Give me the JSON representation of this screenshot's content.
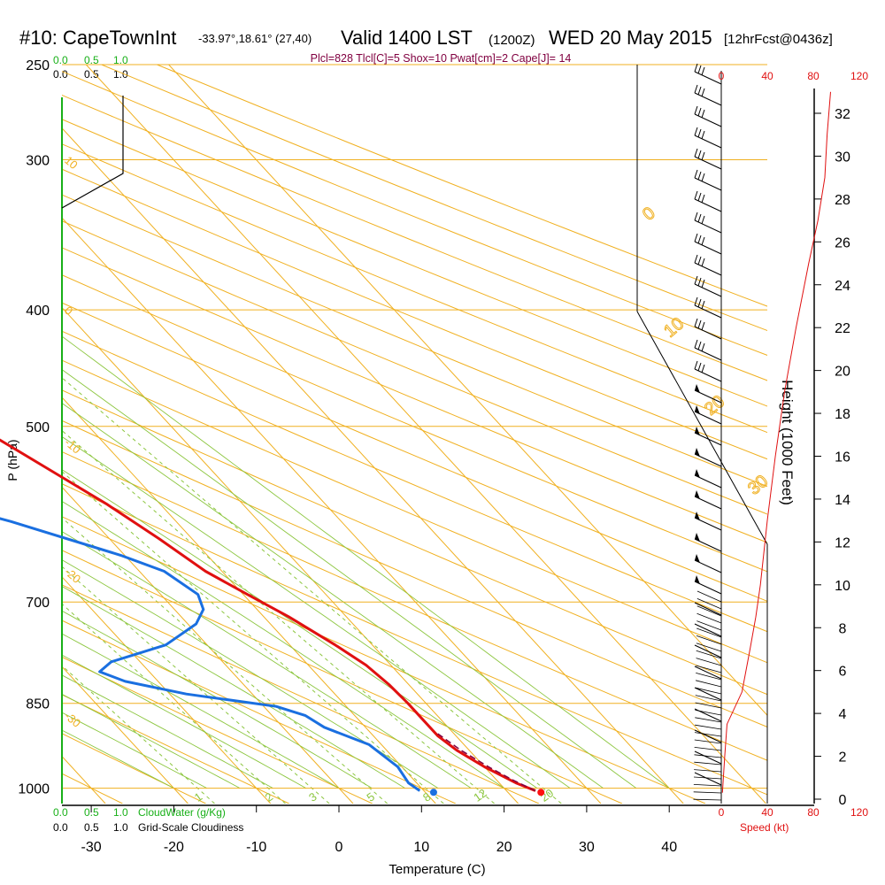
{
  "header": {
    "station": "#10: CapeTownInt",
    "coords": "-33.97°,18.61° (27,40)",
    "valid": "Valid 1400 LST",
    "zulu": "(1200Z)",
    "date": "WED 20 May 2015",
    "forecast": "[12hrFcst@0436z]",
    "indices": "Plcl=828 Tlcl[C]=5 Shox=10 Pwat[cm]=2 Cape[J]= 14"
  },
  "labels": {
    "cloudwater": "CloudWater (g/Kg)",
    "cloudiness": "Grid-Scale Cloudiness",
    "speed": "Speed (kt)",
    "cloud_ticks": [
      "0.0",
      "0.5",
      "1.0"
    ]
  },
  "colors": {
    "temperature": "#e01010",
    "dewpoint": "#1a6fe0",
    "isotherm": "#f0b020",
    "dry_adiabat": "#f0b020",
    "moist_adiabat": "#8cc63f",
    "mixing_ratio": "#8cc63f",
    "cloudwater": "#18b018",
    "parcel": "#800040",
    "speed": "#e01010"
  },
  "chart_data": {
    "type": "line",
    "subtype": "skew-T log-P sounding",
    "xlabel": "Temperature (C)",
    "ylabel": "P (hPa)",
    "right_axis_label": "Height (1000 Feet)",
    "xlim": [
      -35,
      45
    ],
    "ylim": [
      1030,
      250
    ],
    "x_ticks": [
      -30,
      -20,
      -10,
      0,
      10,
      20,
      30,
      40
    ],
    "y_ticks": [
      250,
      300,
      400,
      500,
      700,
      850,
      1000
    ],
    "height_ticks": [
      0,
      2,
      4,
      6,
      8,
      10,
      12,
      14,
      16,
      18,
      20,
      22,
      24,
      26,
      28,
      30,
      32
    ],
    "speed_ticks": [
      0,
      40,
      80,
      120
    ],
    "dry_adiabat_labels": [
      {
        "value": "10",
        "pressure": 300
      },
      {
        "value": "0",
        "pressure": 400
      },
      {
        "value": "-10",
        "pressure": 515
      },
      {
        "value": "-20",
        "pressure": 660
      },
      {
        "value": "-30",
        "pressure": 870
      }
    ],
    "isotherm_labels": [
      "0",
      "10",
      "20",
      "30"
    ],
    "mixing_ratio_labels": [
      "1",
      "2",
      "3",
      "5",
      "8",
      "12",
      "20"
    ],
    "series": [
      {
        "name": "Temperature",
        "points": [
          {
            "p": 1005,
            "t": 23.5
          },
          {
            "p": 990,
            "t": 22
          },
          {
            "p": 960,
            "t": 20
          },
          {
            "p": 930,
            "t": 18.5
          },
          {
            "p": 905,
            "t": 17.8
          },
          {
            "p": 880,
            "t": 17.8
          },
          {
            "p": 850,
            "t": 17.8
          },
          {
            "p": 820,
            "t": 17.6
          },
          {
            "p": 790,
            "t": 17
          },
          {
            "p": 760,
            "t": 15.5
          },
          {
            "p": 720,
            "t": 13
          },
          {
            "p": 690,
            "t": 10.5
          },
          {
            "p": 660,
            "t": 8
          },
          {
            "p": 620,
            "t": 6
          },
          {
            "p": 580,
            "t": 3.5
          },
          {
            "p": 550,
            "t": 1
          },
          {
            "p": 500,
            "t": -3.5
          },
          {
            "p": 450,
            "t": -9
          },
          {
            "p": 400,
            "t": -15
          },
          {
            "p": 350,
            "t": -22.5
          },
          {
            "p": 300,
            "t": -31
          },
          {
            "p": 270,
            "t": -37
          }
        ]
      },
      {
        "name": "Dewpoint",
        "points": [
          {
            "p": 1005,
            "t": 9.5
          },
          {
            "p": 990,
            "t": 9
          },
          {
            "p": 960,
            "t": 9.5
          },
          {
            "p": 920,
            "t": 8.5
          },
          {
            "p": 890,
            "t": 5
          },
          {
            "p": 870,
            "t": 4
          },
          {
            "p": 855,
            "t": 1.5
          },
          {
            "p": 835,
            "t": -8
          },
          {
            "p": 815,
            "t": -14
          },
          {
            "p": 800,
            "t": -16
          },
          {
            "p": 785,
            "t": -13.5
          },
          {
            "p": 760,
            "t": -5
          },
          {
            "p": 730,
            "t": 1
          },
          {
            "p": 710,
            "t": 3.5
          },
          {
            "p": 690,
            "t": 4.5
          },
          {
            "p": 660,
            "t": 3
          },
          {
            "p": 640,
            "t": -0.5
          },
          {
            "p": 600,
            "t": -10
          },
          {
            "p": 560,
            "t": -22
          },
          {
            "p": 530,
            "t": -24
          },
          {
            "p": 500,
            "t": -22
          },
          {
            "p": 470,
            "t": -17
          },
          {
            "p": 440,
            "t": -13
          },
          {
            "p": 420,
            "t": -15
          },
          {
            "p": 400,
            "t": -19.5
          },
          {
            "p": 370,
            "t": -22
          },
          {
            "p": 350,
            "t": -24
          },
          {
            "p": 330,
            "t": -21
          },
          {
            "p": 310,
            "t": -24
          },
          {
            "p": 280,
            "t": -30
          },
          {
            "p": 265,
            "t": -33
          }
        ]
      },
      {
        "name": "Parcel",
        "points": [
          {
            "p": 1005,
            "t": 23.5
          },
          {
            "p": 985,
            "t": 22
          },
          {
            "p": 960,
            "t": 20.5
          },
          {
            "p": 930,
            "t": 19
          },
          {
            "p": 900,
            "t": 18
          }
        ]
      }
    ],
    "surface_points": [
      {
        "name": "surface temperature",
        "p": 1008,
        "t": 24
      },
      {
        "name": "surface dewpoint",
        "p": 1008,
        "t": 11
      }
    ],
    "wind_speed_profile_kt": [
      {
        "height_kft": 0.3,
        "speed": 1
      },
      {
        "height_kft": 2,
        "speed": 3
      },
      {
        "height_kft": 3.5,
        "speed": 5
      },
      {
        "height_kft": 5,
        "speed": 18
      },
      {
        "height_kft": 7,
        "speed": 25
      },
      {
        "height_kft": 8.5,
        "speed": 30
      },
      {
        "height_kft": 10,
        "speed": 34
      },
      {
        "height_kft": 13,
        "speed": 40
      },
      {
        "height_kft": 16,
        "speed": 47
      },
      {
        "height_kft": 19,
        "speed": 55
      },
      {
        "height_kft": 22,
        "speed": 65
      },
      {
        "height_kft": 25,
        "speed": 76
      },
      {
        "height_kft": 27,
        "speed": 84
      },
      {
        "height_kft": 29,
        "speed": 90
      },
      {
        "height_kft": 31,
        "speed": 92
      },
      {
        "height_kft": 33,
        "speed": 95
      }
    ]
  }
}
